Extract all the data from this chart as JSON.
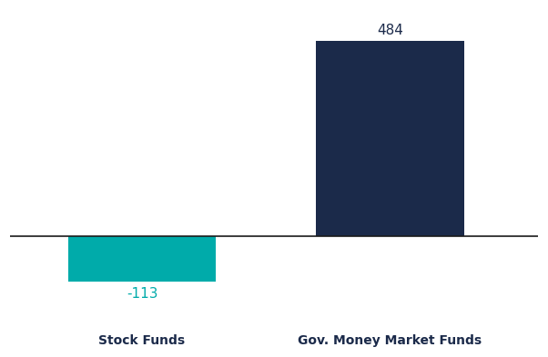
{
  "categories": [
    "Stock Funds",
    "Gov. Money Market Funds"
  ],
  "values": [
    -113,
    484
  ],
  "bar_colors": [
    "#00ABAA",
    "#1B2A4A"
  ],
  "label_colors": [
    "#00ABAA",
    "#1B2A4A"
  ],
  "label_values": [
    "-113",
    "484"
  ],
  "background_color": "#ffffff",
  "ylim": [
    -180,
    560
  ],
  "bar_width": 0.28,
  "label_fontsize": 11,
  "tick_fontsize": 10,
  "axis_line_color": "#1a1a1a",
  "x_positions": [
    0.25,
    0.72
  ]
}
